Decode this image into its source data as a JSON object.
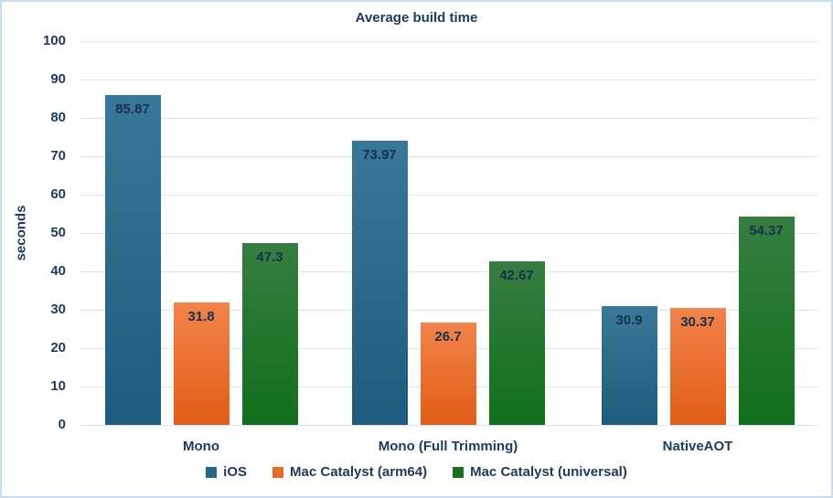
{
  "chart_data": {
    "type": "bar",
    "title": "Average build time",
    "xlabel": "",
    "ylabel": "seconds",
    "categories": [
      "Mono",
      "Mono (Full Trimming)",
      "NativeAOT"
    ],
    "series": [
      {
        "name": "iOS",
        "values": [
          85.87,
          73.97,
          30.9
        ],
        "color_top": "#3a7899",
        "color_bottom": "#1d5c7e",
        "legend_color": "#27688a"
      },
      {
        "name": "Mac Catalyst (arm64)",
        "values": [
          31.8,
          26.7,
          30.37
        ],
        "color_top": "#f2834a",
        "color_bottom": "#e05d15",
        "legend_color": "#e96b28"
      },
      {
        "name": "Mac Catalyst (universal)",
        "values": [
          47.3,
          42.67,
          54.37
        ],
        "color_top": "#377d41",
        "color_bottom": "#10701c",
        "legend_color": "#17701f"
      }
    ],
    "ylim": [
      0,
      100
    ],
    "ytick_step": 10,
    "grid": true,
    "legend_position": "bottom",
    "text_color": "#1d3a5f",
    "gridline_color": "#dbe6f2",
    "border_color": "#c9ddf1",
    "background": "#ffffff"
  }
}
